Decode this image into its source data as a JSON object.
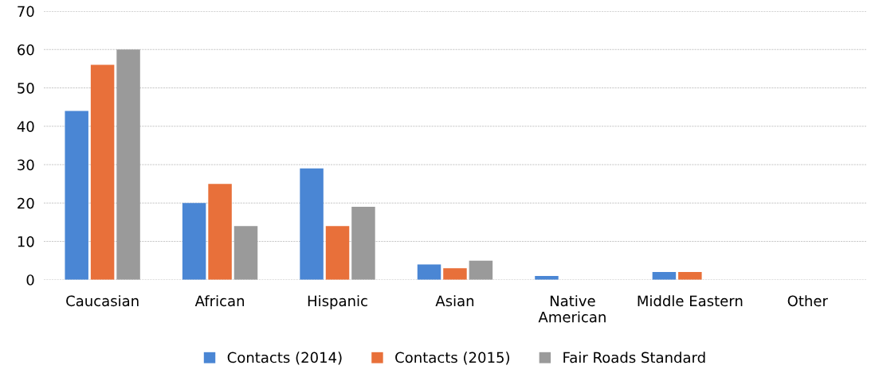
{
  "chart_data": {
    "type": "bar",
    "categories": [
      "Caucasian",
      "African",
      "Hispanic",
      "Asian",
      "Native\nAmerican",
      "Middle Eastern",
      "Other"
    ],
    "series": [
      {
        "name": "Contacts (2014)",
        "color": "#4a86d4",
        "values": [
          44,
          20,
          29,
          4,
          1,
          2,
          0
        ]
      },
      {
        "name": "Contacts (2015)",
        "color": "#e8703a",
        "values": [
          56,
          25,
          14,
          3,
          0,
          2,
          0
        ]
      },
      {
        "name": "Fair Roads Standard",
        "color": "#9a9a9a",
        "values": [
          60,
          14,
          19,
          5,
          0,
          0,
          0
        ]
      }
    ],
    "ylim": [
      0,
      70
    ],
    "yticks": [
      0,
      10,
      20,
      30,
      40,
      50,
      60,
      70
    ],
    "grid": "y",
    "legend": "bottom"
  }
}
